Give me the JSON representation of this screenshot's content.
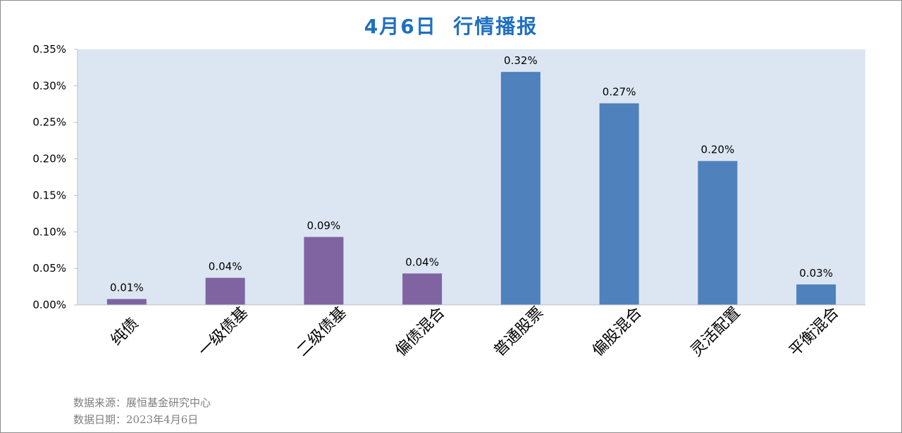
{
  "title": "4月6日  行情播报",
  "chart_data": {
    "type": "bar",
    "categories": [
      "纯债",
      "一级债基",
      "二级债基",
      "偏债混合",
      "普通股票",
      "偏股混合",
      "灵活配置",
      "平衡混合"
    ],
    "values": [
      0.01,
      0.04,
      0.09,
      0.04,
      0.32,
      0.27,
      0.2,
      0.03
    ],
    "bar_heights_pct": [
      0.008,
      0.037,
      0.093,
      0.043,
      0.319,
      0.276,
      0.197,
      0.028
    ],
    "value_labels": [
      "0.01%",
      "0.04%",
      "0.09%",
      "0.04%",
      "0.32%",
      "0.27%",
      "0.20%",
      "0.03%"
    ],
    "colors": [
      "#8064a2",
      "#8064a2",
      "#8064a2",
      "#8064a2",
      "#4f81bd",
      "#4f81bd",
      "#4f81bd",
      "#4f81bd"
    ],
    "ylim": [
      0,
      0.35
    ],
    "yticks": [
      "0.00%",
      "0.05%",
      "0.10%",
      "0.15%",
      "0.20%",
      "0.25%",
      "0.30%",
      "0.35%"
    ],
    "plot_background": "#dce6f2",
    "grid": false,
    "xlabel": "",
    "ylabel": ""
  },
  "footer": {
    "source": "数据来源：展恒基金研究中心",
    "date": "数据日期：2023年4月6日"
  }
}
